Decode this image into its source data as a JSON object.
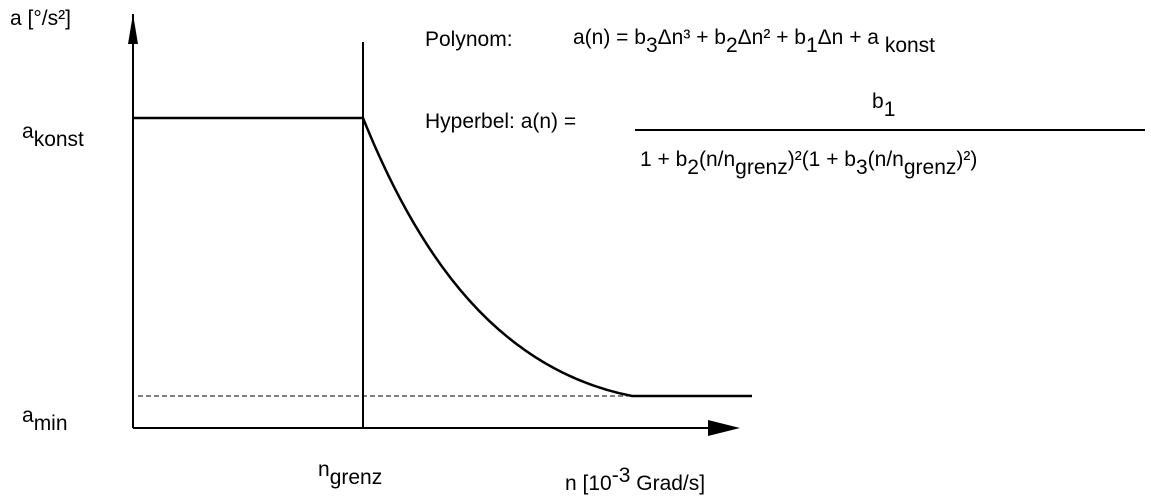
{
  "y_axis": {
    "label": "a [°/s²]",
    "ticks": [
      {
        "text": "a",
        "sub": "konst"
      },
      {
        "text": "a",
        "sub": "min"
      }
    ]
  },
  "x_axis": {
    "label": [
      {
        "text": "n [10",
        "sup": "-3"
      },
      {
        "text": " Grad/s]"
      }
    ],
    "ticks": [
      {
        "text": "n",
        "sub": "grenz"
      }
    ]
  },
  "formulas": {
    "polynom": {
      "label": "Polynom:",
      "pieces": [
        {
          "text": "a(n) = b",
          "sub": "3"
        },
        {
          "text": "Δn³ + b",
          "sub": "2"
        },
        {
          "text": "Δn² + b",
          "sub": "1"
        },
        {
          "text": "Δn + a ",
          "sub": "konst"
        }
      ]
    },
    "hyperbel": {
      "label": "Hyperbel: a(n) =",
      "numerator": [
        {
          "text": "b",
          "sub": "1"
        }
      ],
      "denominator": [
        {
          "text": "1 + b",
          "sub": "2"
        },
        {
          "text": "(n/n",
          "sub": "grenz"
        },
        {
          "text": ")²(1 + b",
          "sub": "3"
        },
        {
          "text": "(n/n",
          "sub": "grenz"
        },
        {
          "text": ")²)"
        }
      ]
    }
  }
}
